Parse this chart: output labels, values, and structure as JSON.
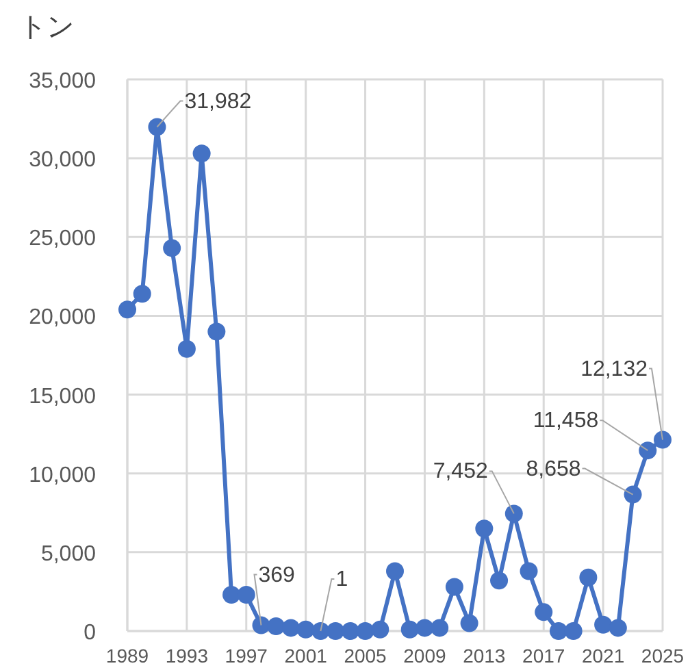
{
  "chart_data": {
    "type": "line",
    "ylabel": "トン",
    "x": [
      1989,
      1990,
      1991,
      1992,
      1993,
      1994,
      1995,
      1996,
      1997,
      1998,
      1999,
      2000,
      2001,
      2002,
      2003,
      2004,
      2005,
      2006,
      2007,
      2008,
      2009,
      2010,
      2011,
      2012,
      2013,
      2014,
      2015,
      2016,
      2017,
      2018,
      2019,
      2020,
      2021,
      2022,
      2023,
      2024,
      2025
    ],
    "series": [
      {
        "color": "#4472c4",
        "values": [
          20400,
          21400,
          31982,
          24300,
          17900,
          30300,
          19000,
          2300,
          2300,
          369,
          300,
          200,
          100,
          1,
          0,
          0,
          0,
          100,
          3800,
          100,
          200,
          200,
          2800,
          500,
          6500,
          3200,
          7452,
          3800,
          1200,
          0,
          0,
          3400,
          400,
          200,
          8658,
          11458,
          12132
        ],
        "value_labels": [
          null,
          null,
          "31,982",
          null,
          null,
          null,
          null,
          null,
          null,
          "369",
          null,
          null,
          null,
          "1",
          null,
          null,
          null,
          null,
          null,
          null,
          null,
          null,
          null,
          null,
          null,
          null,
          "7,452",
          null,
          null,
          null,
          null,
          null,
          null,
          null,
          "8,658",
          "11,458",
          "12,132"
        ]
      }
    ],
    "xlim": [
      1989,
      2025
    ],
    "xticks": [
      1989,
      1993,
      1997,
      2001,
      2005,
      2009,
      2013,
      2017,
      2021,
      2025
    ],
    "ylim": [
      0,
      35000
    ],
    "yticks": [
      {
        "value": 0,
        "label": "0"
      },
      {
        "value": 5000,
        "label": "5,000"
      },
      {
        "value": 10000,
        "label": "10,000"
      },
      {
        "value": 15000,
        "label": "15,000"
      },
      {
        "value": 20000,
        "label": "20,000"
      },
      {
        "value": 25000,
        "label": "25,000"
      },
      {
        "value": 30000,
        "label": "30,000"
      },
      {
        "value": 35000,
        "label": "35,000"
      }
    ],
    "grid": true,
    "marker": "circle",
    "line_style": "solid"
  }
}
